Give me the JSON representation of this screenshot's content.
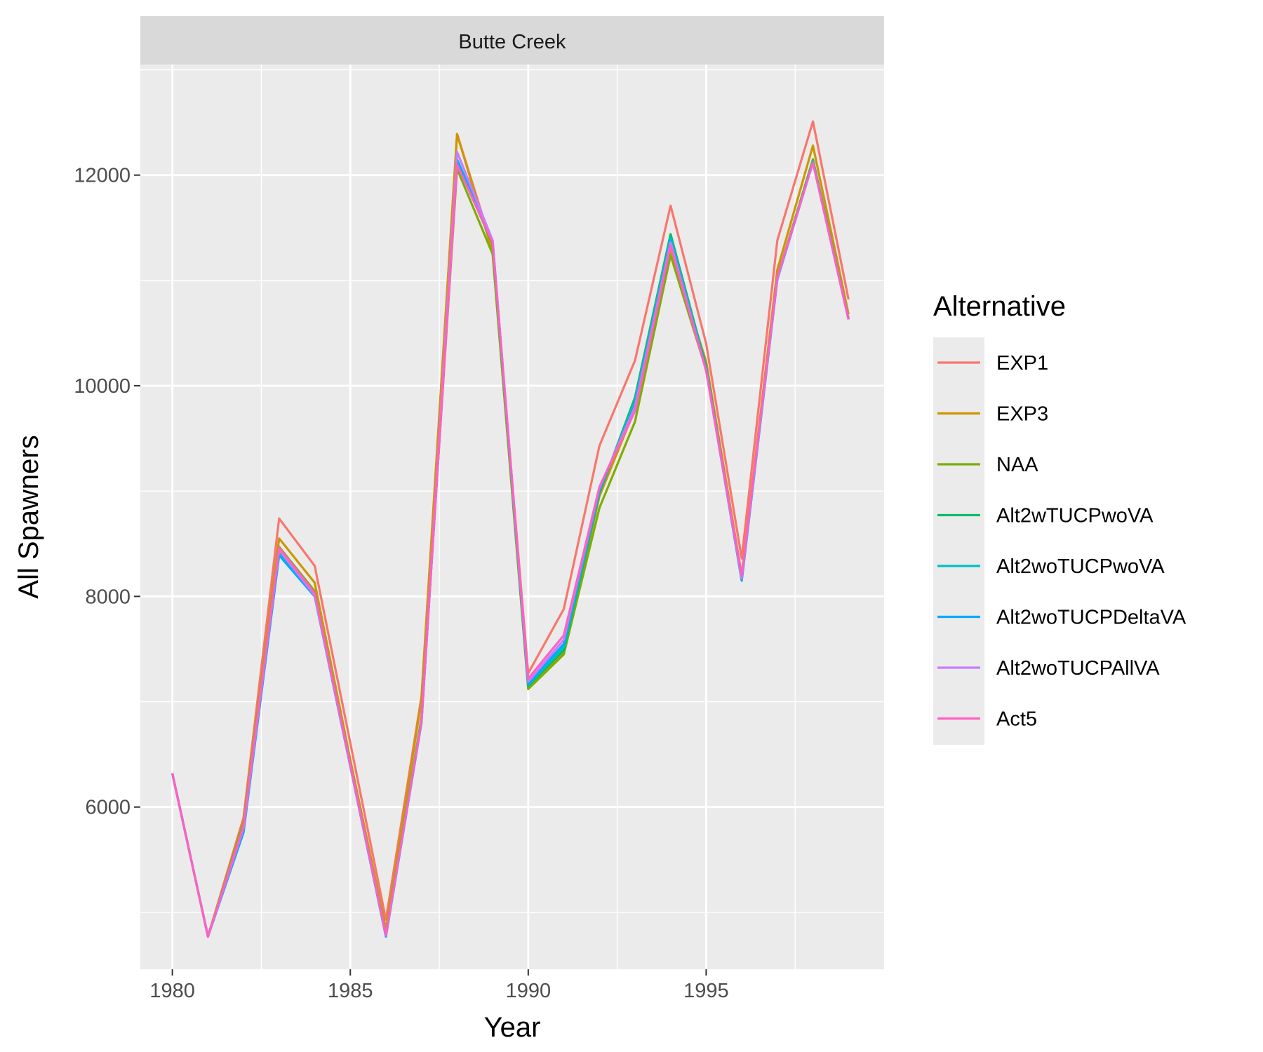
{
  "chart_data": {
    "type": "line",
    "facet_label": "Butte Creek",
    "xlabel": "Year",
    "ylabel": "All Spawners",
    "xlim": [
      1979.1,
      2000
    ],
    "ylim": [
      4460,
      13050
    ],
    "x_ticks": [
      1980,
      1985,
      1990,
      1995
    ],
    "x_tick_labels": [
      "1980",
      "1985",
      "1990",
      "1995"
    ],
    "y_ticks": [
      6000,
      8000,
      10000,
      12000
    ],
    "y_tick_labels": [
      "6000",
      "8000",
      "10000",
      "12000"
    ],
    "grid": true,
    "legend": {
      "title": "Alternative",
      "position": "right"
    },
    "x": [
      1980,
      1981,
      1982,
      1983,
      1984,
      1985,
      1986,
      1987,
      1988,
      1989,
      1990,
      1991,
      1992,
      1993,
      1994,
      1995,
      1996,
      1997,
      1998,
      1999
    ],
    "series": [
      {
        "name": "EXP1",
        "color": "#F8766D",
        "values": [
          6320,
          4770,
          5900,
          8740,
          8290,
          6610,
          4930,
          7050,
          12390,
          11310,
          7270,
          7880,
          9430,
          10240,
          11710,
          10400,
          8360,
          11380,
          12510,
          10820
        ]
      },
      {
        "name": "EXP3",
        "color": "#CD9600",
        "values": [
          6320,
          4770,
          5870,
          8550,
          8130,
          6450,
          4840,
          7020,
          12390,
          11270,
          7130,
          7470,
          8950,
          9780,
          11290,
          10230,
          8200,
          11100,
          12280,
          10680
        ]
      },
      {
        "name": "NAA",
        "color": "#7CAE00",
        "values": [
          6320,
          4770,
          5850,
          8470,
          8050,
          6410,
          4790,
          6850,
          12060,
          11250,
          7120,
          7450,
          8840,
          9660,
          11240,
          10150,
          8170,
          11030,
          12150,
          10640
        ]
      },
      {
        "name": "Alt2wTUCPwoVA",
        "color": "#00BE67",
        "values": [
          6320,
          4770,
          5800,
          8420,
          8020,
          6400,
          4780,
          6830,
          12110,
          11350,
          7150,
          7490,
          8980,
          9890,
          11440,
          10180,
          8160,
          11020,
          12140,
          10630
        ]
      },
      {
        "name": "Alt2woTUCPwoVA",
        "color": "#00BFC4",
        "values": [
          6320,
          4770,
          5780,
          8400,
          8010,
          6390,
          4770,
          6810,
          12140,
          11360,
          7160,
          7520,
          9000,
          9850,
          11400,
          10160,
          8150,
          11010,
          12130,
          10630
        ]
      },
      {
        "name": "Alt2woTUCPDeltaVA",
        "color": "#00A9FF",
        "values": [
          6320,
          4770,
          5760,
          8390,
          8000,
          6390,
          4770,
          6800,
          12150,
          11370,
          7170,
          7550,
          9010,
          9820,
          11380,
          10150,
          8150,
          11010,
          12120,
          10630
        ]
      },
      {
        "name": "Alt2woTUCPAllVA",
        "color": "#C77CFF",
        "values": [
          6320,
          4770,
          5800,
          8440,
          8010,
          6400,
          4780,
          6820,
          12220,
          11380,
          7190,
          7590,
          9030,
          9800,
          11360,
          10140,
          8170,
          11020,
          12120,
          10630
        ]
      },
      {
        "name": "Act5",
        "color": "#FF61C3",
        "values": [
          6320,
          4770,
          5820,
          8460,
          8030,
          6400,
          4780,
          6810,
          12100,
          11360,
          7220,
          7630,
          9040,
          9760,
          11330,
          10140,
          8190,
          11030,
          12120,
          10630
        ]
      }
    ]
  }
}
